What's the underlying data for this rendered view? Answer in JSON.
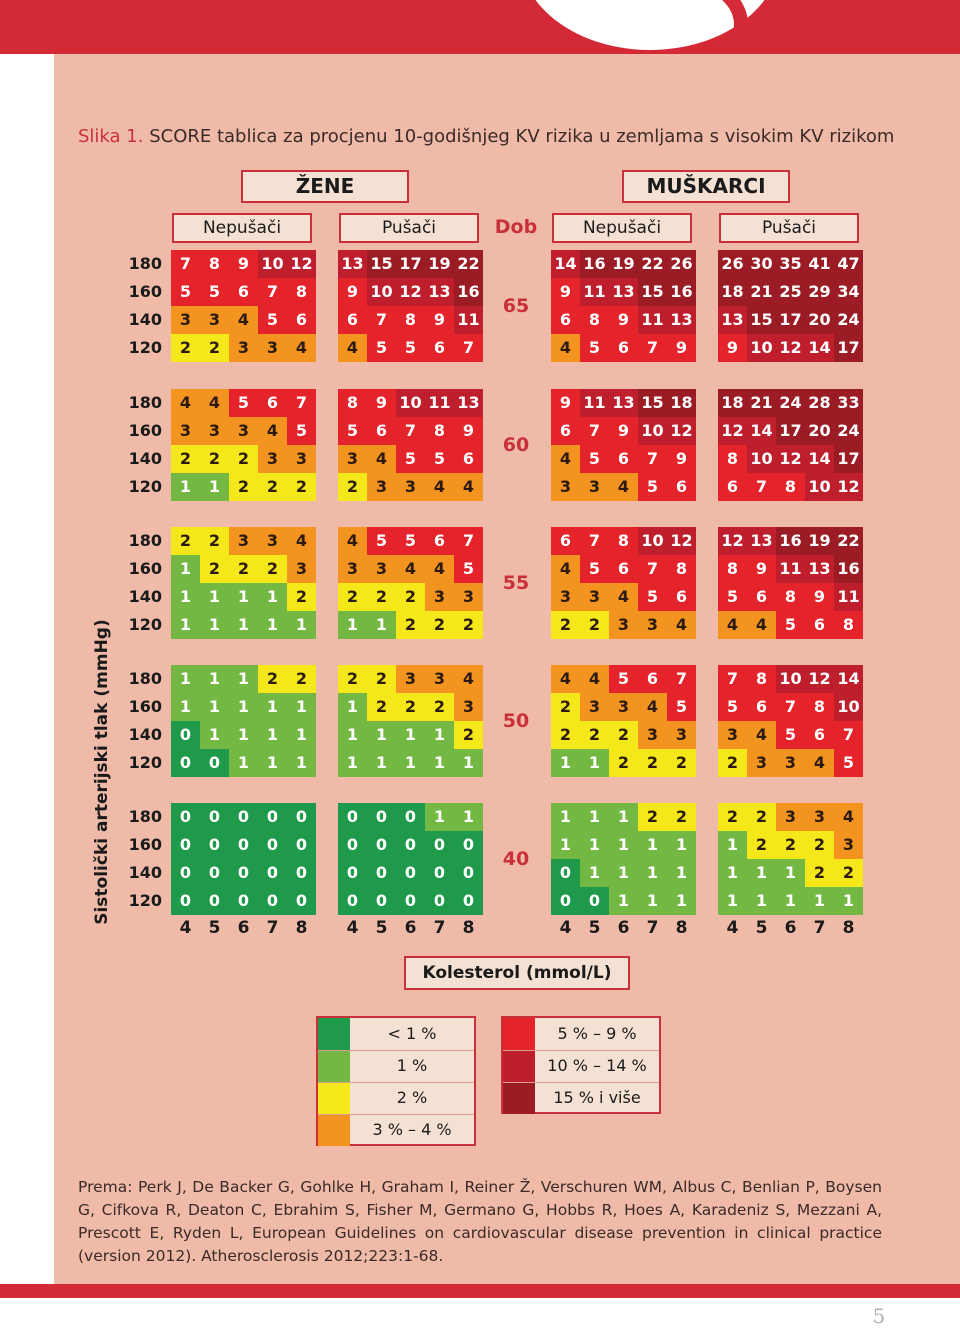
{
  "caption": {
    "label": "Slika 1.",
    "title": "SCORE tablica za procjenu 10-godišnjeg KV rizika u zemljama s visokim KV rizikom"
  },
  "headers": {
    "women": "ŽENE",
    "men": "MUŠKARCI",
    "nonsmoker": "Nepušači",
    "smoker": "Pušači",
    "age": "Dob"
  },
  "y_axis_label": "Sistolički arterijski tlak (mmHg)",
  "x_axis_label": "Kolesterol (mmol/L)",
  "bp_levels": [
    "180",
    "160",
    "140",
    "120"
  ],
  "cholesterol_levels": [
    "4",
    "5",
    "6",
    "7",
    "8"
  ],
  "colors": {
    "dark-green": "#1e9a4a",
    "light-green": "#73b843",
    "yellow": "#f4e81a",
    "orange": "#f39320",
    "red": "#e4232b",
    "dark-red": "#bf1e2d",
    "maroon": "#9b1c24"
  },
  "legend": [
    {
      "label": "< 1 %",
      "color": "#1e9a4a"
    },
    {
      "label": "1 %",
      "color": "#73b843"
    },
    {
      "label": "2 %",
      "color": "#f4e81a"
    },
    {
      "label": "3 % – 4 %",
      "color": "#f39320"
    },
    {
      "label": "5 % – 9 %",
      "color": "#e4232b"
    },
    {
      "label": "10 % – 14 %",
      "color": "#bf1e2d"
    },
    {
      "label": "15 % i više",
      "color": "#9b1c24"
    }
  ],
  "age_blocks": [
    {
      "age": "65",
      "women_nonsmoker": [
        [
          7,
          8,
          9,
          10,
          12
        ],
        [
          5,
          5,
          6,
          7,
          8
        ],
        [
          3,
          3,
          4,
          5,
          6
        ],
        [
          2,
          2,
          3,
          3,
          4
        ]
      ],
      "women_smoker": [
        [
          13,
          15,
          17,
          19,
          22
        ],
        [
          9,
          10,
          12,
          13,
          16
        ],
        [
          6,
          7,
          8,
          9,
          11
        ],
        [
          4,
          5,
          5,
          6,
          7
        ]
      ],
      "men_nonsmoker": [
        [
          14,
          16,
          19,
          22,
          26
        ],
        [
          9,
          11,
          13,
          15,
          16
        ],
        [
          6,
          8,
          9,
          11,
          13
        ],
        [
          4,
          5,
          6,
          7,
          9
        ]
      ],
      "men_smoker": [
        [
          26,
          30,
          35,
          41,
          47
        ],
        [
          18,
          21,
          25,
          29,
          34
        ],
        [
          13,
          15,
          17,
          20,
          24
        ],
        [
          9,
          10,
          12,
          14,
          17
        ]
      ]
    },
    {
      "age": "60",
      "women_nonsmoker": [
        [
          4,
          4,
          5,
          6,
          7
        ],
        [
          3,
          3,
          3,
          4,
          5
        ],
        [
          2,
          2,
          2,
          3,
          3
        ],
        [
          1,
          1,
          2,
          2,
          2
        ]
      ],
      "women_smoker": [
        [
          8,
          9,
          10,
          11,
          13
        ],
        [
          5,
          6,
          7,
          8,
          9
        ],
        [
          3,
          4,
          5,
          5,
          6
        ],
        [
          2,
          3,
          3,
          4,
          4
        ]
      ],
      "men_nonsmoker": [
        [
          9,
          11,
          13,
          15,
          18
        ],
        [
          6,
          7,
          9,
          10,
          12
        ],
        [
          4,
          5,
          6,
          7,
          9
        ],
        [
          3,
          3,
          4,
          5,
          6
        ]
      ],
      "men_smoker": [
        [
          18,
          21,
          24,
          28,
          33
        ],
        [
          12,
          14,
          17,
          20,
          24
        ],
        [
          8,
          10,
          12,
          14,
          17
        ],
        [
          6,
          7,
          8,
          10,
          12
        ]
      ]
    },
    {
      "age": "55",
      "women_nonsmoker": [
        [
          2,
          2,
          3,
          3,
          4
        ],
        [
          1,
          2,
          2,
          2,
          3
        ],
        [
          1,
          1,
          1,
          1,
          2
        ],
        [
          1,
          1,
          1,
          1,
          1
        ]
      ],
      "women_smoker": [
        [
          4,
          5,
          5,
          6,
          7
        ],
        [
          3,
          3,
          4,
          4,
          5
        ],
        [
          2,
          2,
          2,
          3,
          3
        ],
        [
          1,
          1,
          2,
          2,
          2
        ]
      ],
      "men_nonsmoker": [
        [
          6,
          7,
          8,
          10,
          12
        ],
        [
          4,
          5,
          6,
          7,
          8
        ],
        [
          3,
          3,
          4,
          5,
          6
        ],
        [
          2,
          2,
          3,
          3,
          4
        ]
      ],
      "men_smoker": [
        [
          12,
          13,
          16,
          19,
          22
        ],
        [
          8,
          9,
          11,
          13,
          16
        ],
        [
          5,
          6,
          8,
          9,
          11
        ],
        [
          4,
          4,
          5,
          6,
          8
        ]
      ]
    },
    {
      "age": "50",
      "women_nonsmoker": [
        [
          1,
          1,
          1,
          2,
          2
        ],
        [
          1,
          1,
          1,
          1,
          1
        ],
        [
          0,
          1,
          1,
          1,
          1
        ],
        [
          0,
          0,
          1,
          1,
          1
        ]
      ],
      "women_smoker": [
        [
          2,
          2,
          3,
          3,
          4
        ],
        [
          1,
          2,
          2,
          2,
          3
        ],
        [
          1,
          1,
          1,
          1,
          2
        ],
        [
          1,
          1,
          1,
          1,
          1
        ]
      ],
      "men_nonsmoker": [
        [
          4,
          4,
          5,
          6,
          7
        ],
        [
          2,
          3,
          3,
          4,
          5
        ],
        [
          2,
          2,
          2,
          3,
          3
        ],
        [
          1,
          1,
          2,
          2,
          2
        ]
      ],
      "men_smoker": [
        [
          7,
          8,
          10,
          12,
          14
        ],
        [
          5,
          6,
          7,
          8,
          10
        ],
        [
          3,
          4,
          5,
          6,
          7
        ],
        [
          2,
          3,
          3,
          4,
          5
        ]
      ]
    },
    {
      "age": "40",
      "women_nonsmoker": [
        [
          0,
          0,
          0,
          0,
          0
        ],
        [
          0,
          0,
          0,
          0,
          0
        ],
        [
          0,
          0,
          0,
          0,
          0
        ],
        [
          0,
          0,
          0,
          0,
          0
        ]
      ],
      "women_smoker": [
        [
          0,
          0,
          0,
          1,
          1
        ],
        [
          0,
          0,
          0,
          0,
          0
        ],
        [
          0,
          0,
          0,
          0,
          0
        ],
        [
          0,
          0,
          0,
          0,
          0
        ]
      ],
      "men_nonsmoker": [
        [
          1,
          1,
          1,
          2,
          2
        ],
        [
          1,
          1,
          1,
          1,
          1
        ],
        [
          0,
          1,
          1,
          1,
          1
        ],
        [
          0,
          0,
          1,
          1,
          1
        ]
      ],
      "men_smoker": [
        [
          2,
          2,
          3,
          3,
          4
        ],
        [
          1,
          2,
          2,
          2,
          3
        ],
        [
          1,
          1,
          1,
          2,
          2
        ],
        [
          1,
          1,
          1,
          1,
          1
        ]
      ]
    }
  ],
  "reference": "Prema: Perk J, De Backer G, Gohlke H, Graham I, Reiner Ž, Verschuren WM, Albus C, Benlian P, Boysen G, Cifkova R, Deaton C, Ebrahim S, Fisher M, Germano G, Hobbs R, Hoes A, Karadeniz S, Mezzani A, Prescott E, Ryden L, European Guidelines on cardiovascular disease prevention in clinical practice (version 2012). Atherosclerosis 2012;223:1-68.",
  "page_number": "5"
}
